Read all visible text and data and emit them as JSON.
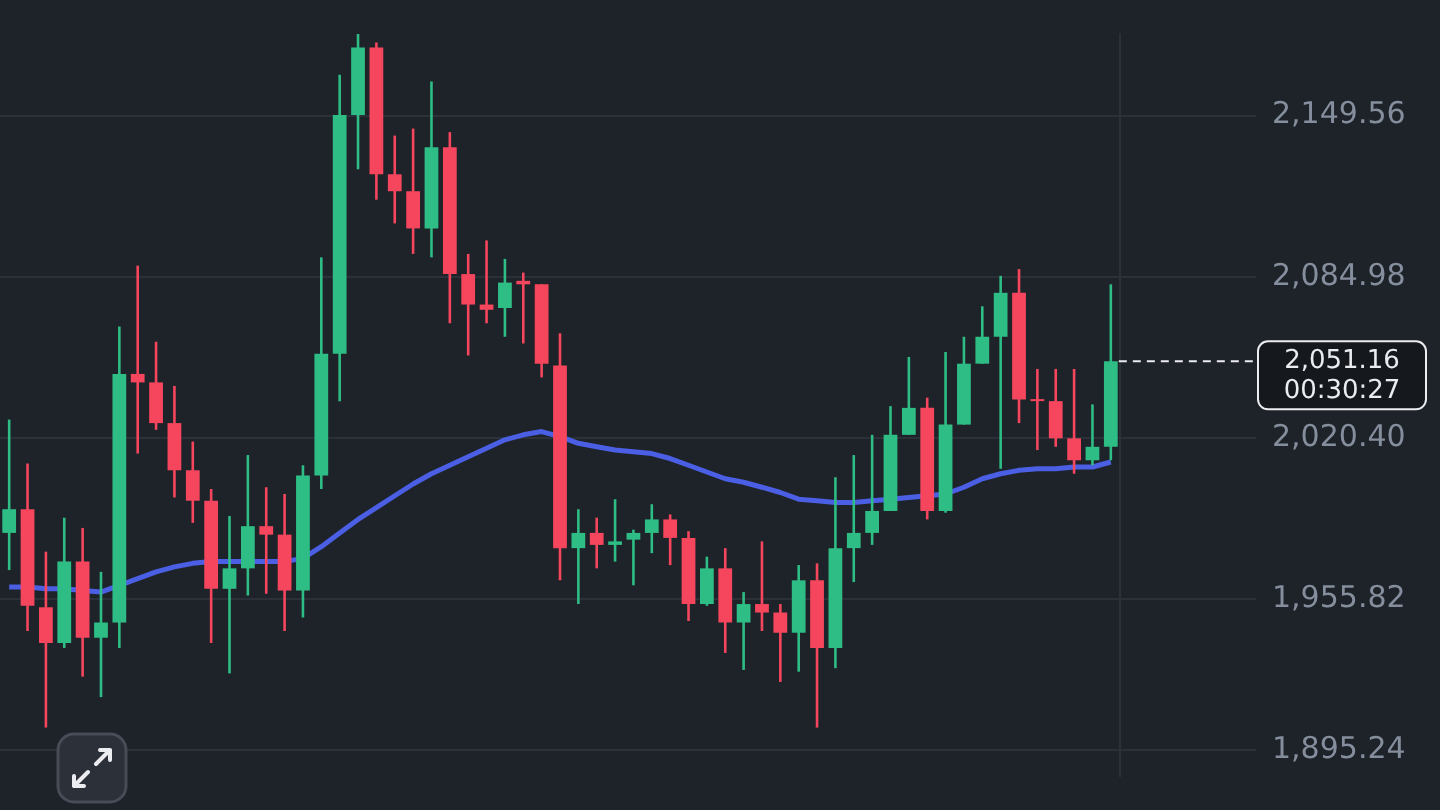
{
  "chart_data": {
    "type": "candlestick",
    "categories": [
      null,
      null,
      null,
      null,
      null,
      null,
      null,
      null,
      null,
      null,
      null,
      null,
      null,
      null,
      null,
      null,
      null,
      null,
      null,
      null,
      null,
      null,
      null,
      null,
      null,
      null,
      null,
      null,
      null,
      null,
      null,
      null,
      null,
      null,
      null,
      null,
      null,
      null,
      null,
      null,
      null,
      null,
      null,
      null,
      null,
      null,
      null,
      null,
      null,
      null,
      null,
      null,
      null,
      null,
      null,
      null,
      null,
      null,
      null,
      null,
      null
    ],
    "ylim": [
      1885,
      2182.3
    ],
    "yticks": [
      {
        "value": 1895.24,
        "label": "1,895.24"
      },
      {
        "value": 1955.82,
        "label": "1,955.82"
      },
      {
        "value": 2020.4,
        "label": "2,020.40"
      },
      {
        "value": 2084.98,
        "label": "2,084.98"
      },
      {
        "value": 2149.56,
        "label": "2,149.56"
      }
    ],
    "grid": "y",
    "tick_labels": "y",
    "legend": false,
    "ref_lines": [
      {
        "axis": "y",
        "value": 2051.16,
        "label": "2,051.16",
        "line_style": "dashed",
        "color": "#eaecef"
      }
    ],
    "annotations": [
      "00:30:27"
    ],
    "series": [
      {
        "type": "candlestick",
        "ohlc": [
          [
            1982.4,
            2027.8,
            1967.5,
            1991.9
          ],
          [
            1991.9,
            2010.2,
            1943.1,
            1953.2
          ],
          [
            1952.6,
            1974.9,
            1904.4,
            1938.3
          ],
          [
            1938.3,
            1988.5,
            1936.3,
            1970.9
          ],
          [
            1970.9,
            1984.4,
            1924.8,
            1940.4
          ],
          [
            1940.4,
            1966.8,
            1916.6,
            1946.5
          ],
          [
            1946.5,
            2065.1,
            1936.3,
            2046.1
          ],
          [
            2046.1,
            2089.5,
            2014.2,
            2042.7
          ],
          [
            2042.7,
            2059.0,
            2023.7,
            2026.4
          ],
          [
            2026.4,
            2041.3,
            1996.6,
            2007.5
          ],
          [
            2007.5,
            2019.0,
            1986.4,
            1995.3
          ],
          [
            1995.3,
            2000.0,
            1938.3,
            1960.0
          ],
          [
            1960.0,
            1989.2,
            1926.1,
            1968.2
          ],
          [
            1968.2,
            2013.6,
            1957.3,
            1985.1
          ],
          [
            1985.1,
            2000.7,
            1958.0,
            1981.7
          ],
          [
            1981.7,
            1998.0,
            1943.1,
            1959.3
          ],
          [
            1959.3,
            2009.5,
            1948.5,
            2005.4
          ],
          [
            2005.4,
            2092.8,
            2000.0,
            2054.2
          ],
          [
            2054.2,
            2166.0,
            2035.2,
            2149.8
          ],
          [
            2149.8,
            2182.3,
            2128.1,
            2176.9
          ],
          [
            2176.9,
            2178.9,
            2115.9,
            2126.1
          ],
          [
            2126.1,
            2141.6,
            2106.4,
            2119.3
          ],
          [
            2119.3,
            2144.4,
            2094.2,
            2104.4
          ],
          [
            2104.4,
            2163.3,
            2092.8,
            2136.9
          ],
          [
            2136.9,
            2143.0,
            2066.4,
            2086.1
          ],
          [
            2086.1,
            2094.2,
            2053.5,
            2073.9
          ],
          [
            2073.9,
            2099.6,
            2066.4,
            2071.8
          ],
          [
            2072.5,
            2092.2,
            2061.0,
            2082.7
          ],
          [
            2083.4,
            2086.7,
            2058.3,
            2082.0
          ],
          [
            2082.0,
            2082.0,
            2044.7,
            2050.2
          ],
          [
            2049.5,
            2062.4,
            1963.4,
            1976.3
          ],
          [
            1976.3,
            1991.9,
            1953.9,
            1982.4
          ],
          [
            1982.4,
            1988.5,
            1968.2,
            1977.6
          ],
          [
            1977.6,
            1995.9,
            1970.9,
            1979.0
          ],
          [
            1979.7,
            1983.7,
            1961.4,
            1982.4
          ],
          [
            1982.4,
            1993.9,
            1974.3,
            1987.8
          ],
          [
            1987.8,
            1989.8,
            1969.5,
            1980.4
          ],
          [
            1980.4,
            1983.1,
            1947.1,
            1953.9
          ],
          [
            1953.9,
            1972.9,
            1953.2,
            1968.2
          ],
          [
            1968.2,
            1976.3,
            1934.3,
            1946.5
          ],
          [
            1946.5,
            1958.7,
            1927.5,
            1953.9
          ],
          [
            1953.9,
            1979.0,
            1943.1,
            1950.5
          ],
          [
            1950.5,
            1953.9,
            1922.7,
            1942.4
          ],
          [
            1942.4,
            1969.5,
            1926.8,
            1963.4
          ],
          [
            1963.4,
            1970.2,
            1904.4,
            1936.3
          ],
          [
            1936.3,
            2004.7,
            1928.2,
            1976.3
          ],
          [
            1976.3,
            2013.6,
            1962.7,
            1982.4
          ],
          [
            1982.4,
            2021.7,
            1977.6,
            1991.2
          ],
          [
            1991.2,
            2033.2,
            1991.2,
            2021.7
          ],
          [
            2021.7,
            2052.9,
            2021.7,
            2032.5
          ],
          [
            2032.5,
            2036.6,
            1987.8,
            1991.2
          ],
          [
            1991.2,
            2054.9,
            1990.5,
            2025.8
          ],
          [
            2025.8,
            2061.0,
            2025.8,
            2050.2
          ],
          [
            2050.2,
            2073.2,
            2050.2,
            2061.0
          ],
          [
            2061.0,
            2085.4,
            2008.1,
            2078.6
          ],
          [
            2078.6,
            2088.1,
            2026.4,
            2035.9
          ],
          [
            2035.9,
            2048.1,
            2015.6,
            2035.2
          ],
          [
            2035.2,
            2048.1,
            2016.9,
            2020.3
          ],
          [
            2020.3,
            2048.1,
            2006.1,
            2011.5
          ],
          [
            2011.5,
            2033.9,
            2009.5,
            2016.9
          ],
          [
            2016.9,
            2082.0,
            2011.5,
            2051.16
          ]
        ],
        "colors": [
          "#2ebd85",
          "#f6465d",
          "#f6465d",
          "#2ebd85",
          "#f6465d",
          "#2ebd85",
          "#2ebd85",
          "#f6465d",
          "#f6465d",
          "#f6465d",
          "#f6465d",
          "#f6465d",
          "#2ebd85",
          "#2ebd85",
          "#f6465d",
          "#f6465d",
          "#2ebd85",
          "#2ebd85",
          "#2ebd85",
          "#2ebd85",
          "#f6465d",
          "#f6465d",
          "#f6465d",
          "#2ebd85",
          "#f6465d",
          "#f6465d",
          "#f6465d",
          "#2ebd85",
          "#f6465d",
          "#f6465d",
          "#f6465d",
          "#2ebd85",
          "#f6465d",
          "#2ebd85",
          "#2ebd85",
          "#2ebd85",
          "#f6465d",
          "#f6465d",
          "#2ebd85",
          "#f6465d",
          "#2ebd85",
          "#f6465d",
          "#f6465d",
          "#2ebd85",
          "#f6465d",
          "#2ebd85",
          "#2ebd85",
          "#2ebd85",
          "#2ebd85",
          "#2ebd85",
          "#f6465d",
          "#2ebd85",
          "#2ebd85",
          "#2ebd85",
          "#2ebd85",
          "#f6465d",
          "#f6465d",
          "#f6465d",
          "#f6465d",
          "#2ebd85",
          "#2ebd85"
        ]
      },
      {
        "type": "line",
        "color": "#4a5fe3",
        "values": [
          1960.7,
          1960.7,
          1960.0,
          1960.0,
          1959.3,
          1958.7,
          1961.4,
          1964.1,
          1966.8,
          1968.8,
          1970.2,
          1970.9,
          1970.9,
          1970.9,
          1970.9,
          1970.9,
          1972.2,
          1976.9,
          1982.4,
          1987.8,
          1992.5,
          1997.3,
          2002.0,
          2006.1,
          2009.5,
          2012.9,
          2016.3,
          2019.7,
          2021.7,
          2023.0,
          2021.0,
          2018.3,
          2016.9,
          2015.6,
          2014.9,
          2014.2,
          2012.2,
          2009.5,
          2006.8,
          2004.1,
          2002.7,
          2000.7,
          1998.6,
          1995.9,
          1995.3,
          1994.6,
          1994.6,
          1995.3,
          1995.9,
          1996.6,
          1997.3,
          1998.0,
          2000.7,
          2004.1,
          2006.1,
          2007.5,
          2008.1,
          2008.1,
          2008.8,
          2008.8,
          2010.8
        ]
      }
    ]
  }
}
